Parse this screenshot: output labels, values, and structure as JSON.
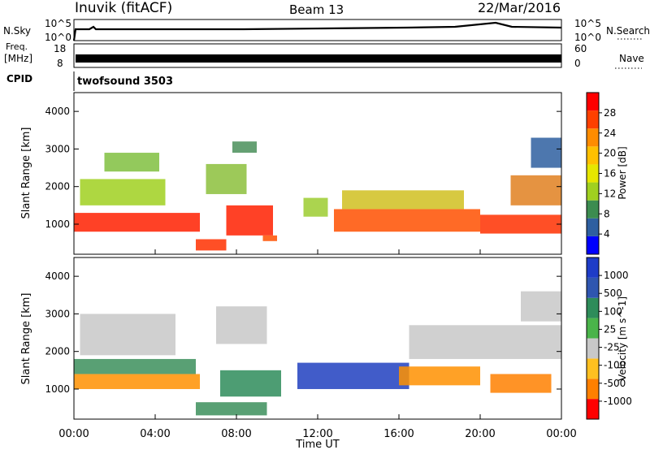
{
  "header": {
    "station": "Inuvik (fitACF)",
    "beam": "Beam 13",
    "date": "22/Mar/2016"
  },
  "top_panels": {
    "nsky_label": "N.Sky",
    "nsearch_label": "N.Search",
    "nsky_ticks": [
      "10^5",
      "10^0"
    ],
    "nsearch_ticks": [
      "10^5",
      "10^0"
    ],
    "freq_label_1": "Freq.",
    "freq_label_2": "[MHz]",
    "freq_ticks": [
      "18",
      "8"
    ],
    "nave_label": "Nave",
    "nave_ticks": [
      "60",
      "0"
    ],
    "cpid_label": "CPID",
    "cpid_value": "twofsound 3503"
  },
  "chart_data": [
    {
      "type": "heatmap",
      "name": "power",
      "ylabel": "Slant Range [km]",
      "ylim": [
        200,
        4500
      ],
      "y_ticks": [
        "1000",
        "2000",
        "3000",
        "4000"
      ],
      "xlim_hours": [
        0,
        24
      ],
      "colorbar_label": "Power [dB]",
      "colorbar_ticks": [
        "28",
        "24",
        "20",
        "16",
        "12",
        "8",
        "4"
      ],
      "colorbar_colors": [
        "#ff0000",
        "#ff4000",
        "#ff8c00",
        "#ffc000",
        "#e6e600",
        "#a0d020",
        "#3c8c50",
        "#2e5fa0",
        "#0000ff"
      ],
      "bands": [
        {
          "x0": 0.0,
          "x1": 6.2,
          "y0": 800,
          "y1": 1300,
          "color": "#ff2000"
        },
        {
          "x0": 6.0,
          "x1": 7.5,
          "y0": 300,
          "y1": 600,
          "color": "#ff3000"
        },
        {
          "x0": 7.5,
          "x1": 9.8,
          "y0": 700,
          "y1": 1500,
          "color": "#ff2000"
        },
        {
          "x0": 9.3,
          "x1": 10.0,
          "y0": 550,
          "y1": 700,
          "color": "#ff5000"
        },
        {
          "x0": 0.3,
          "x1": 4.5,
          "y0": 1500,
          "y1": 2200,
          "color": "#a0d020"
        },
        {
          "x0": 1.5,
          "x1": 4.2,
          "y0": 2400,
          "y1": 2900,
          "color": "#80c040"
        },
        {
          "x0": 6.5,
          "x1": 8.5,
          "y0": 1800,
          "y1": 2600,
          "color": "#8cc03c"
        },
        {
          "x0": 7.8,
          "x1": 9.0,
          "y0": 2900,
          "y1": 3200,
          "color": "#4a8f5a"
        },
        {
          "x0": 11.3,
          "x1": 12.5,
          "y0": 1200,
          "y1": 1700,
          "color": "#9ccc30"
        },
        {
          "x0": 12.8,
          "x1": 20.0,
          "y0": 800,
          "y1": 1400,
          "color": "#ff5000"
        },
        {
          "x0": 13.2,
          "x1": 19.2,
          "y0": 1400,
          "y1": 1900,
          "color": "#d0c020"
        },
        {
          "x0": 20.0,
          "x1": 24.0,
          "y0": 750,
          "y1": 1250,
          "color": "#ff3000"
        },
        {
          "x0": 21.5,
          "x1": 24.0,
          "y0": 1500,
          "y1": 2300,
          "color": "#e08020"
        },
        {
          "x0": 22.5,
          "x1": 24.0,
          "y0": 2500,
          "y1": 3300,
          "color": "#2e5fa0"
        }
      ]
    },
    {
      "type": "heatmap",
      "name": "velocity",
      "ylabel": "Slant Range [km]",
      "ylim": [
        200,
        4500
      ],
      "y_ticks": [
        "1000",
        "2000",
        "3000",
        "4000"
      ],
      "xlim_hours": [
        0,
        24
      ],
      "x_ticks": [
        "00:00",
        "04:00",
        "08:00",
        "12:00",
        "16:00",
        "20:00",
        "00:00"
      ],
      "xlabel": "Time UT",
      "colorbar_label": "Velocity [m s^-1]",
      "colorbar_ticks": [
        "1000",
        "500",
        "100",
        "25",
        "-25",
        "-100",
        "-500",
        "-1000"
      ],
      "colorbar_colors": [
        "#1e3cc8",
        "#2f56b0",
        "#2e8c5a",
        "#4ab44a",
        "#c8c8c8",
        "#ffc020",
        "#ff8000",
        "#ff0000"
      ],
      "bands": [
        {
          "x0": 0.0,
          "x1": 6.2,
          "y0": 1000,
          "y1": 1400,
          "color": "#ff9000"
        },
        {
          "x0": 0.0,
          "x1": 6.0,
          "y0": 1400,
          "y1": 1800,
          "color": "#3c8f5c"
        },
        {
          "x0": 0.3,
          "x1": 5.0,
          "y0": 1900,
          "y1": 3000,
          "color": "#c8c8c8"
        },
        {
          "x0": 7.2,
          "x1": 10.2,
          "y0": 800,
          "y1": 1500,
          "color": "#2e8c5a"
        },
        {
          "x0": 7.0,
          "x1": 9.5,
          "y0": 2200,
          "y1": 3200,
          "color": "#c8c8c8"
        },
        {
          "x0": 6.0,
          "x1": 9.5,
          "y0": 300,
          "y1": 650,
          "color": "#3c8f5c"
        },
        {
          "x0": 11.0,
          "x1": 16.5,
          "y0": 1000,
          "y1": 1700,
          "color": "#2040c0"
        },
        {
          "x0": 16.0,
          "x1": 20.0,
          "y0": 1100,
          "y1": 1600,
          "color": "#ff9000"
        },
        {
          "x0": 16.5,
          "x1": 24.0,
          "y0": 1800,
          "y1": 2700,
          "color": "#c8c8c8"
        },
        {
          "x0": 20.5,
          "x1": 23.5,
          "y0": 900,
          "y1": 1400,
          "color": "#ff8000"
        },
        {
          "x0": 22.0,
          "x1": 24.0,
          "y0": 2800,
          "y1": 3600,
          "color": "#c8c8c8"
        }
      ]
    }
  ]
}
